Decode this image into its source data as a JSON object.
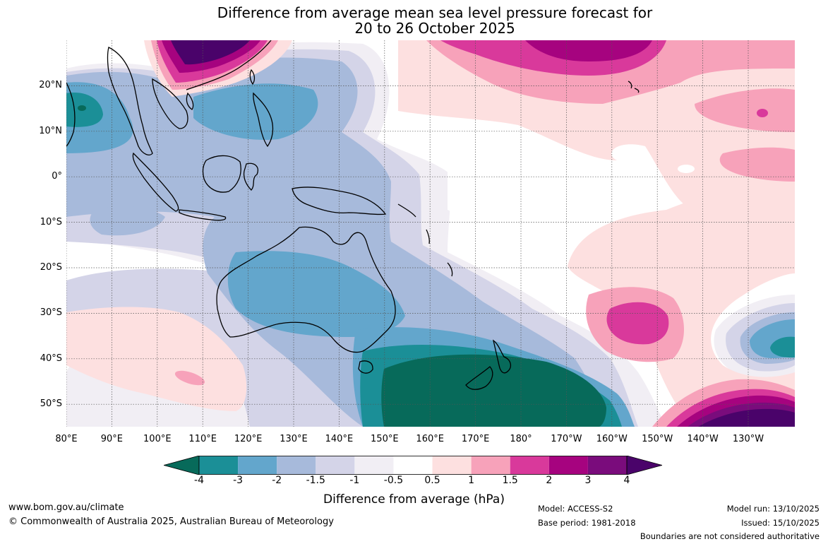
{
  "title": {
    "line1": "Difference from average mean sea level pressure forecast for",
    "line2": "20 to 26 October 2025"
  },
  "map": {
    "lat_ticks": [
      "20°N",
      "10°N",
      "0°",
      "10°S",
      "20°S",
      "30°S",
      "40°S",
      "50°S"
    ],
    "lon_ticks": [
      "80°E",
      "90°E",
      "100°E",
      "110°E",
      "120°E",
      "130°E",
      "140°E",
      "150°E",
      "160°E",
      "170°E",
      "180°",
      "170°W",
      "160°W",
      "150°W",
      "140°W",
      "130°W"
    ],
    "lat_range": [
      -55,
      30
    ],
    "lon_range": [
      80,
      240
    ]
  },
  "colorbar": {
    "labels": [
      "-4",
      "-3",
      "-2",
      "-1.5",
      "-1",
      "-0.5",
      "0.5",
      "1",
      "1.5",
      "2",
      "3",
      "4"
    ],
    "colors": [
      "#076a5a",
      "#1b8f97",
      "#63a6cc",
      "#a7badb",
      "#d4d4e8",
      "#f1eef4",
      "#ffffff",
      "#fde0e0",
      "#f7a2ba",
      "#d9399b",
      "#a6037f",
      "#7a0c7c",
      "#4a036a"
    ],
    "title": "Difference from average (hPa)"
  },
  "footer": {
    "site": "www.bom.gov.au/climate",
    "copyright": "© Commonwealth of Australia 2025, Australian Bureau of Meteorology",
    "model": "Model: ACCESS-S2",
    "base_period": "Base period: 1981-2018",
    "model_run": "Model run: 13/10/2025",
    "issued": "Issued: 15/10/2025",
    "boundaries": "Boundaries are not considered authoritative"
  }
}
